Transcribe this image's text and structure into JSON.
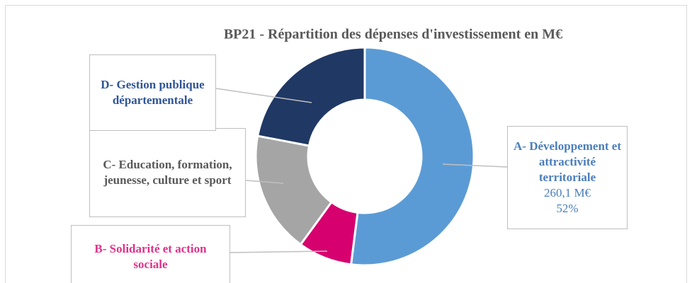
{
  "chart_data": {
    "type": "donut",
    "title": "BP21 - Répartition des dépenses d'investissement en M€",
    "categories": [
      "A- Développement et attractivité territoriale",
      "B- Solidarité et action sociale",
      "C- Education, formation, jeunesse, culture et sport",
      "D- Gestion publique départementale"
    ],
    "values": [
      260.1,
      40,
      90,
      110
    ],
    "value_labels": [
      "260,1 M€",
      null,
      null,
      null
    ],
    "percent_labels": [
      "52%",
      null,
      null,
      null
    ],
    "colors": [
      "#5b9bd5",
      "#d6006f",
      "#a5a5a5",
      "#203864"
    ],
    "label_colors": [
      "#4a7ebb",
      "#e0318a",
      "#595959",
      "#2f5597"
    ]
  }
}
